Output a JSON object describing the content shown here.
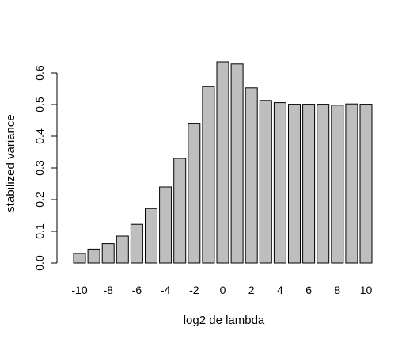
{
  "chart_data": {
    "type": "bar",
    "title": "",
    "xlabel": "log2 de lambda",
    "ylabel": "stabilized variance",
    "categories": [
      "-10",
      "-9",
      "-8",
      "-7",
      "-6",
      "-5",
      "-4",
      "-3",
      "-2",
      "-1",
      "0",
      "1",
      "2",
      "3",
      "4",
      "5",
      "6",
      "7",
      "8",
      "9",
      "10"
    ],
    "x_tick_labels": [
      "-10",
      "-8",
      "-6",
      "-4",
      "-2",
      "0",
      "2",
      "4",
      "6",
      "8",
      "10"
    ],
    "values": [
      0.03,
      0.044,
      0.061,
      0.085,
      0.122,
      0.172,
      0.24,
      0.33,
      0.441,
      0.557,
      0.635,
      0.628,
      0.553,
      0.513,
      0.506,
      0.501,
      0.501,
      0.501,
      0.498,
      0.502,
      0.501
    ],
    "ylim": [
      0,
      0.65
    ],
    "y_ticks": [
      0.0,
      0.1,
      0.2,
      0.3,
      0.4,
      0.5,
      0.6
    ],
    "y_tick_labels": [
      "0.0",
      "0.1",
      "0.2",
      "0.3",
      "0.4",
      "0.5",
      "0.6"
    ],
    "grid": false,
    "legend": "none",
    "bar_color": "#bebebe",
    "border_color": "#000000"
  }
}
